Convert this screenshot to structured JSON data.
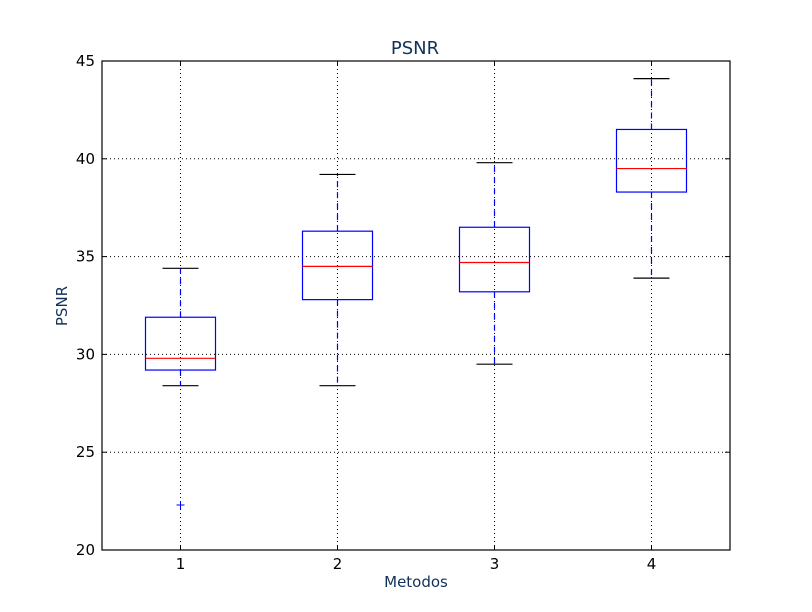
{
  "chart_data": {
    "type": "boxplot",
    "title": "PSNR",
    "xlabel": "Metodos",
    "ylabel": "PSNR",
    "categories": [
      "1",
      "2",
      "3",
      "4"
    ],
    "ylim": [
      20,
      45
    ],
    "yticks": [
      20,
      25,
      30,
      35,
      40,
      45
    ],
    "grid": true,
    "boxes": [
      {
        "category": "1",
        "whisker_low": 28.4,
        "q1": 29.2,
        "median": 29.8,
        "q3": 31.9,
        "whisker_high": 34.4,
        "outliers": [
          22.3
        ]
      },
      {
        "category": "2",
        "whisker_low": 28.4,
        "q1": 32.8,
        "median": 34.5,
        "q3": 36.3,
        "whisker_high": 39.2,
        "outliers": []
      },
      {
        "category": "3",
        "whisker_low": 29.5,
        "q1": 33.2,
        "median": 34.7,
        "q3": 36.5,
        "whisker_high": 39.8,
        "outliers": []
      },
      {
        "category": "4",
        "whisker_low": 33.9,
        "q1": 38.3,
        "median": 39.5,
        "q3": 41.5,
        "whisker_high": 44.1,
        "outliers": []
      }
    ],
    "colors": {
      "box": "#0000ff",
      "median": "#ff0000",
      "cap": "#000000",
      "whisker": "#0000ff",
      "outlier": "#0000ff",
      "title": "#10325a",
      "grid": "#000000"
    }
  }
}
